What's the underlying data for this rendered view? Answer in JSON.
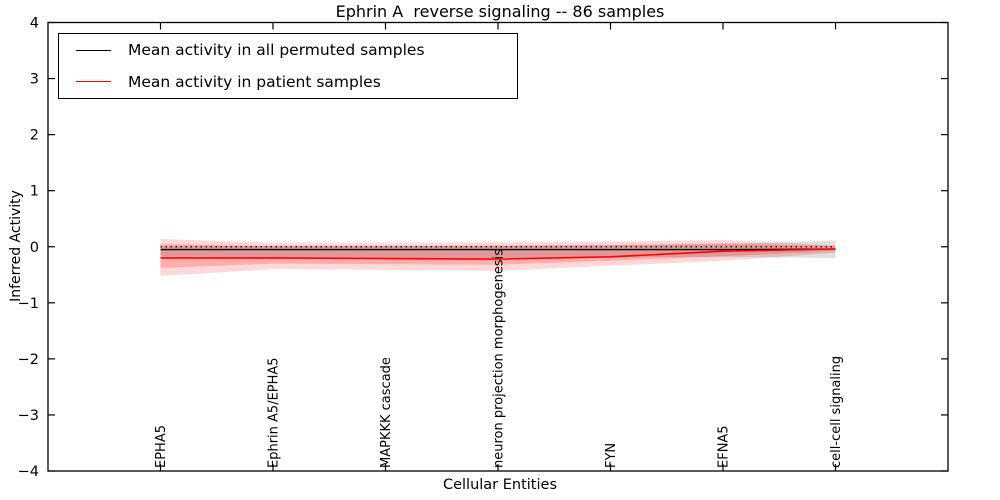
{
  "figure": {
    "title": "Ephrin A  reverse signaling -- 86 samples",
    "background": "#ffffff"
  },
  "chart_data": {
    "type": "line",
    "title": "Ephrin A  reverse signaling -- 86 samples",
    "xlabel": "Cellular Entities",
    "ylabel": "Inferred Activity",
    "categories": [
      "EPHA5",
      "Ephrin A5/EPHA5",
      "MAPKKK cascade",
      "neuron projection morphogenesis",
      "FYN",
      "EFNA5",
      "cell-cell signaling"
    ],
    "ylim": [
      -4,
      4
    ],
    "yticks": [
      4,
      3,
      2,
      1,
      0,
      -1,
      -2,
      -3,
      -4
    ],
    "grid": false,
    "legend_position": "upper left",
    "zero_line": {
      "y": 0,
      "style": "dotted",
      "color": "#000000"
    },
    "series": [
      {
        "name": "Mean activity in all permuted samples",
        "color": "#000000",
        "values": [
          -0.05,
          -0.05,
          -0.05,
          -0.05,
          -0.05,
          -0.05,
          -0.04
        ],
        "band": {
          "upper": [
            0.01,
            0.02,
            0.02,
            0.02,
            0.03,
            0.05,
            0.11
          ],
          "lower": [
            -0.17,
            -0.19,
            -0.2,
            -0.2,
            -0.19,
            -0.18,
            -0.2
          ],
          "color": "#000000",
          "alpha": 0.12
        }
      },
      {
        "name": "Mean activity in patient samples",
        "color": "#ff0000",
        "values": [
          -0.2,
          -0.2,
          -0.21,
          -0.22,
          -0.18,
          -0.08,
          -0.04
        ],
        "band_inner": {
          "upper": [
            0.05,
            0.01,
            0.01,
            0.02,
            0.03,
            0.06,
            0.01
          ],
          "lower": [
            -0.38,
            -0.3,
            -0.31,
            -0.32,
            -0.25,
            -0.17,
            -0.08
          ],
          "color": "#ff0000",
          "alpha": 0.2
        },
        "band_outer": {
          "upper": [
            0.14,
            0.07,
            0.07,
            0.08,
            0.09,
            0.12,
            0.03
          ],
          "lower": [
            -0.52,
            -0.4,
            -0.41,
            -0.43,
            -0.34,
            -0.25,
            -0.11
          ],
          "color": "#ff0000",
          "alpha": 0.15
        }
      }
    ]
  }
}
